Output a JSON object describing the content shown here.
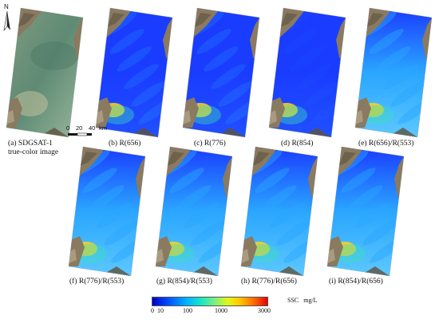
{
  "north_label": "N",
  "scale_bar": {
    "ticks": [
      "0",
      "20",
      "40"
    ],
    "unit": "km"
  },
  "panels": [
    {
      "id": "a",
      "caption_line1": "(a) SDGSAT-1",
      "caption_line2": "true-color image",
      "kind": "true-color"
    },
    {
      "id": "b",
      "caption_line1": "(b) R(656)",
      "kind": "ssc"
    },
    {
      "id": "c",
      "caption_line1": "(c) R(776)",
      "kind": "ssc"
    },
    {
      "id": "d",
      "caption_line1": "(d) R(854)",
      "kind": "ssc"
    },
    {
      "id": "e",
      "caption_line1": "(e) R(656)/R(553)",
      "kind": "ssc"
    },
    {
      "id": "f",
      "caption_line1": "(f) R(776)/R(553)",
      "kind": "ssc"
    },
    {
      "id": "g",
      "caption_line1": "(g) R(854)/R(553)",
      "kind": "ssc"
    },
    {
      "id": "h",
      "caption_line1": "(h) R(776)/R(656)",
      "kind": "ssc"
    },
    {
      "id": "i",
      "caption_line1": "(i) R(854)/R(656)",
      "kind": "ssc"
    }
  ],
  "colorbar": {
    "ticks": [
      "0",
      "10",
      "100",
      "1000",
      "3000"
    ],
    "title": "SSC",
    "unit": "mg/L",
    "colors": [
      "#0000c8",
      "#0050ff",
      "#00b4ff",
      "#14e6c8",
      "#7af082",
      "#e6f514",
      "#ffc800",
      "#ff6e00",
      "#e60000"
    ]
  },
  "colors": {
    "land": "#8a7a60",
    "land_dark": "#5e5240",
    "land_light": "#b6a98e",
    "true_color_water": "#5f8a74",
    "true_color_water_light": "#9ab89e",
    "ssc_low": "#1a3cff",
    "ssc_mid": "#2aa6ff",
    "ssc_high": "#ffd21e"
  }
}
